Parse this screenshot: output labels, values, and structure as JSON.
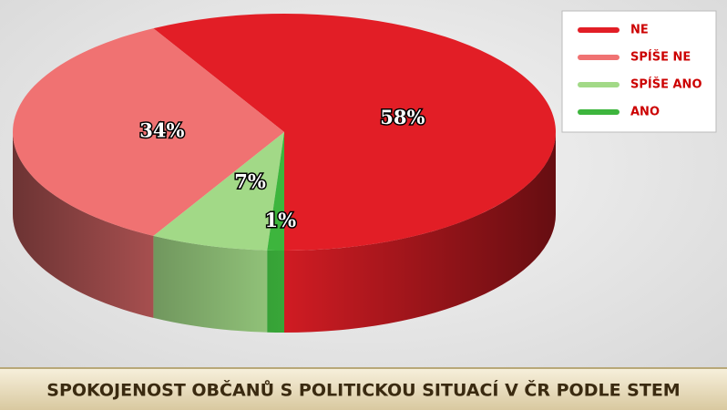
{
  "chart_data": {
    "type": "pie3d",
    "title": "SPOKOJENOST OBČANŮ S POLITICKOU SITUACÍ V ČR PODLE STEM",
    "categories": [
      "NE",
      "SPÍŠE NE",
      "SPÍŠE ANO",
      "ANO"
    ],
    "values": [
      58,
      34,
      7,
      1
    ],
    "value_labels": [
      "58%",
      "34%",
      "7%",
      "1%"
    ],
    "colors": [
      "#e21e26",
      "#f07272",
      "#a2d987",
      "#3db53d"
    ],
    "legend": "top-right"
  }
}
